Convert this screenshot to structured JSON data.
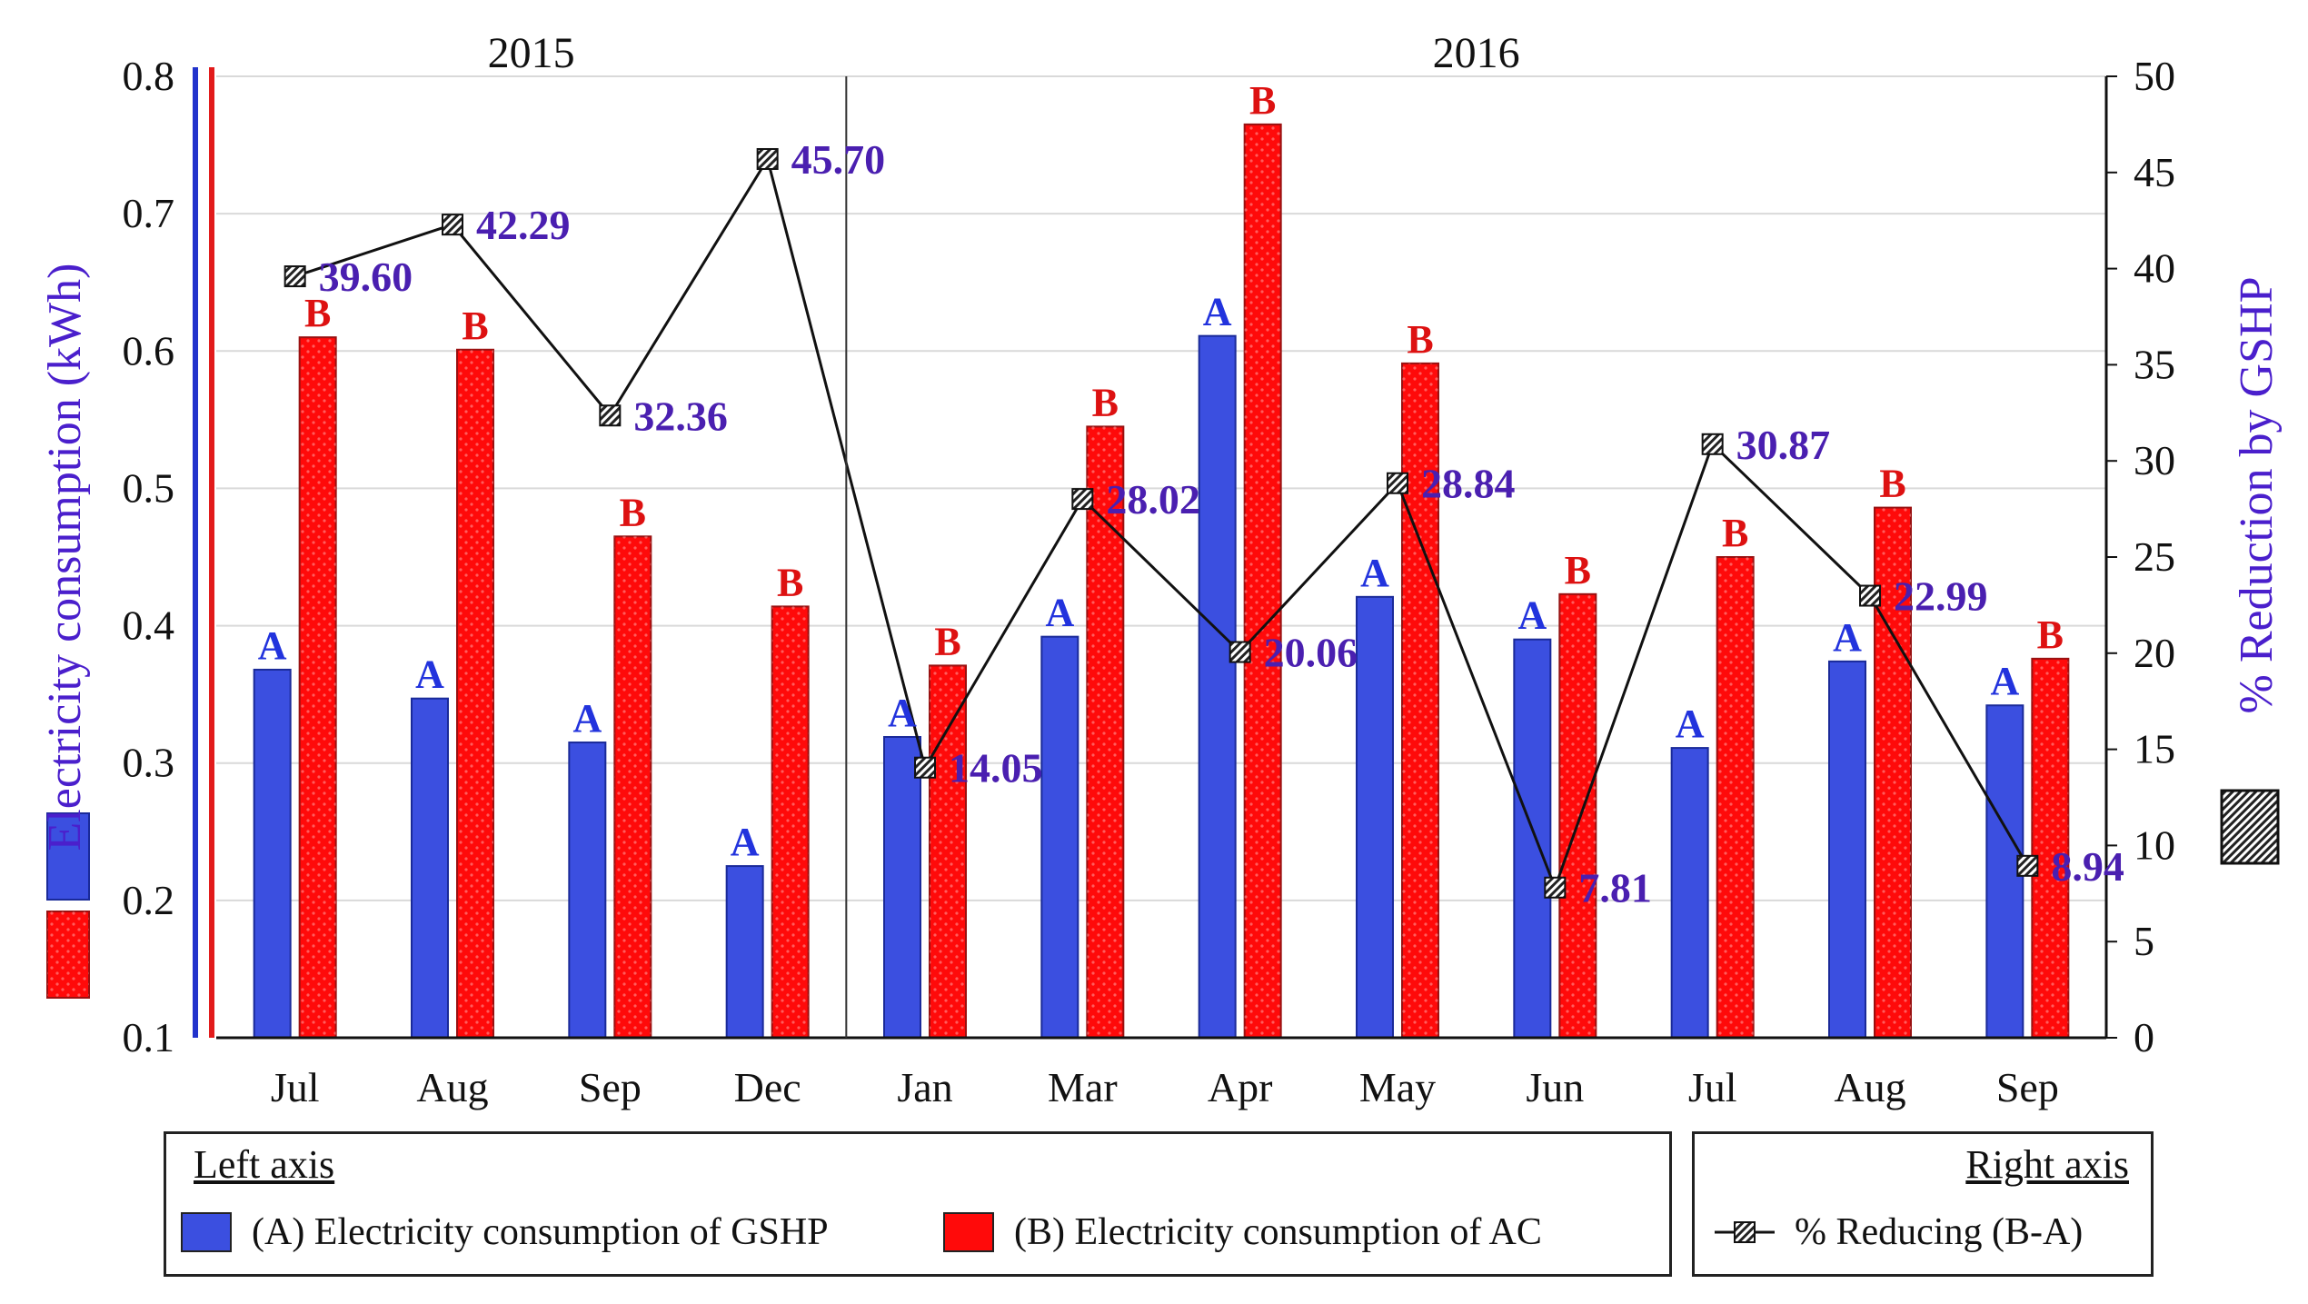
{
  "chart_data": {
    "type": "bar",
    "categories": [
      "Jul",
      "Aug",
      "Sep",
      "Dec",
      "Jan",
      "Mar",
      "Apr",
      "May",
      "Jun",
      "Jul",
      "Aug",
      "Sep"
    ],
    "year_groups": [
      {
        "label": "2015",
        "start": 0,
        "end": 3
      },
      {
        "label": "2016",
        "start": 4,
        "end": 11
      }
    ],
    "series": [
      {
        "name": "(A) Electricity consumption of GSHP",
        "bar_label": "A",
        "color": "#3b4fe0",
        "axis": "left",
        "values": [
          0.368,
          0.347,
          0.315,
          0.225,
          0.319,
          0.392,
          0.611,
          0.421,
          0.39,
          0.311,
          0.374,
          0.342
        ]
      },
      {
        "name": "(B) Electricity consumption of AC",
        "bar_label": "B",
        "color": "#ff0a0a",
        "axis": "left",
        "values": [
          0.61,
          0.601,
          0.465,
          0.414,
          0.371,
          0.545,
          0.765,
          0.591,
          0.423,
          0.45,
          0.486,
          0.376
        ]
      },
      {
        "name": "% Reducing (B-A)",
        "type": "line",
        "axis": "right",
        "values": [
          39.6,
          42.29,
          32.36,
          45.7,
          14.05,
          28.02,
          20.06,
          28.84,
          7.81,
          30.87,
          22.99,
          8.94
        ],
        "labels": [
          "39.60",
          "42.29",
          "32.36",
          "45.70",
          "14.05",
          "28.02",
          "20.06",
          "28.84",
          "7.81",
          "30.87",
          "22.99",
          "8.94"
        ]
      }
    ],
    "left_axis": {
      "label": "Electricity consumption (kWh)",
      "ylim": [
        0.1,
        0.8
      ],
      "ticks": [
        "0.1",
        "0.2",
        "0.3",
        "0.4",
        "0.5",
        "0.6",
        "0.7",
        "0.8"
      ]
    },
    "right_axis": {
      "label": "% Reduction by GSHP",
      "ylim": [
        0,
        50
      ],
      "ticks": [
        "0",
        "5",
        "10",
        "15",
        "20",
        "25",
        "30",
        "35",
        "40",
        "45",
        "50"
      ]
    },
    "grid": true
  },
  "legend": {
    "left_title": "Left axis",
    "right_title": "Right axis",
    "gshp_label": "(A) Electricity consumption of GSHP",
    "ac_label": "(B) Electricity consumption of AC",
    "reducing_label": "% Reducing (B-A)"
  },
  "colors": {
    "gshp": "#3b4fe0",
    "ac": "#ff0a0a",
    "bar_label_a": "#2233dd",
    "bar_label_b": "#dd1111",
    "point_label": "#4a1fb0"
  }
}
